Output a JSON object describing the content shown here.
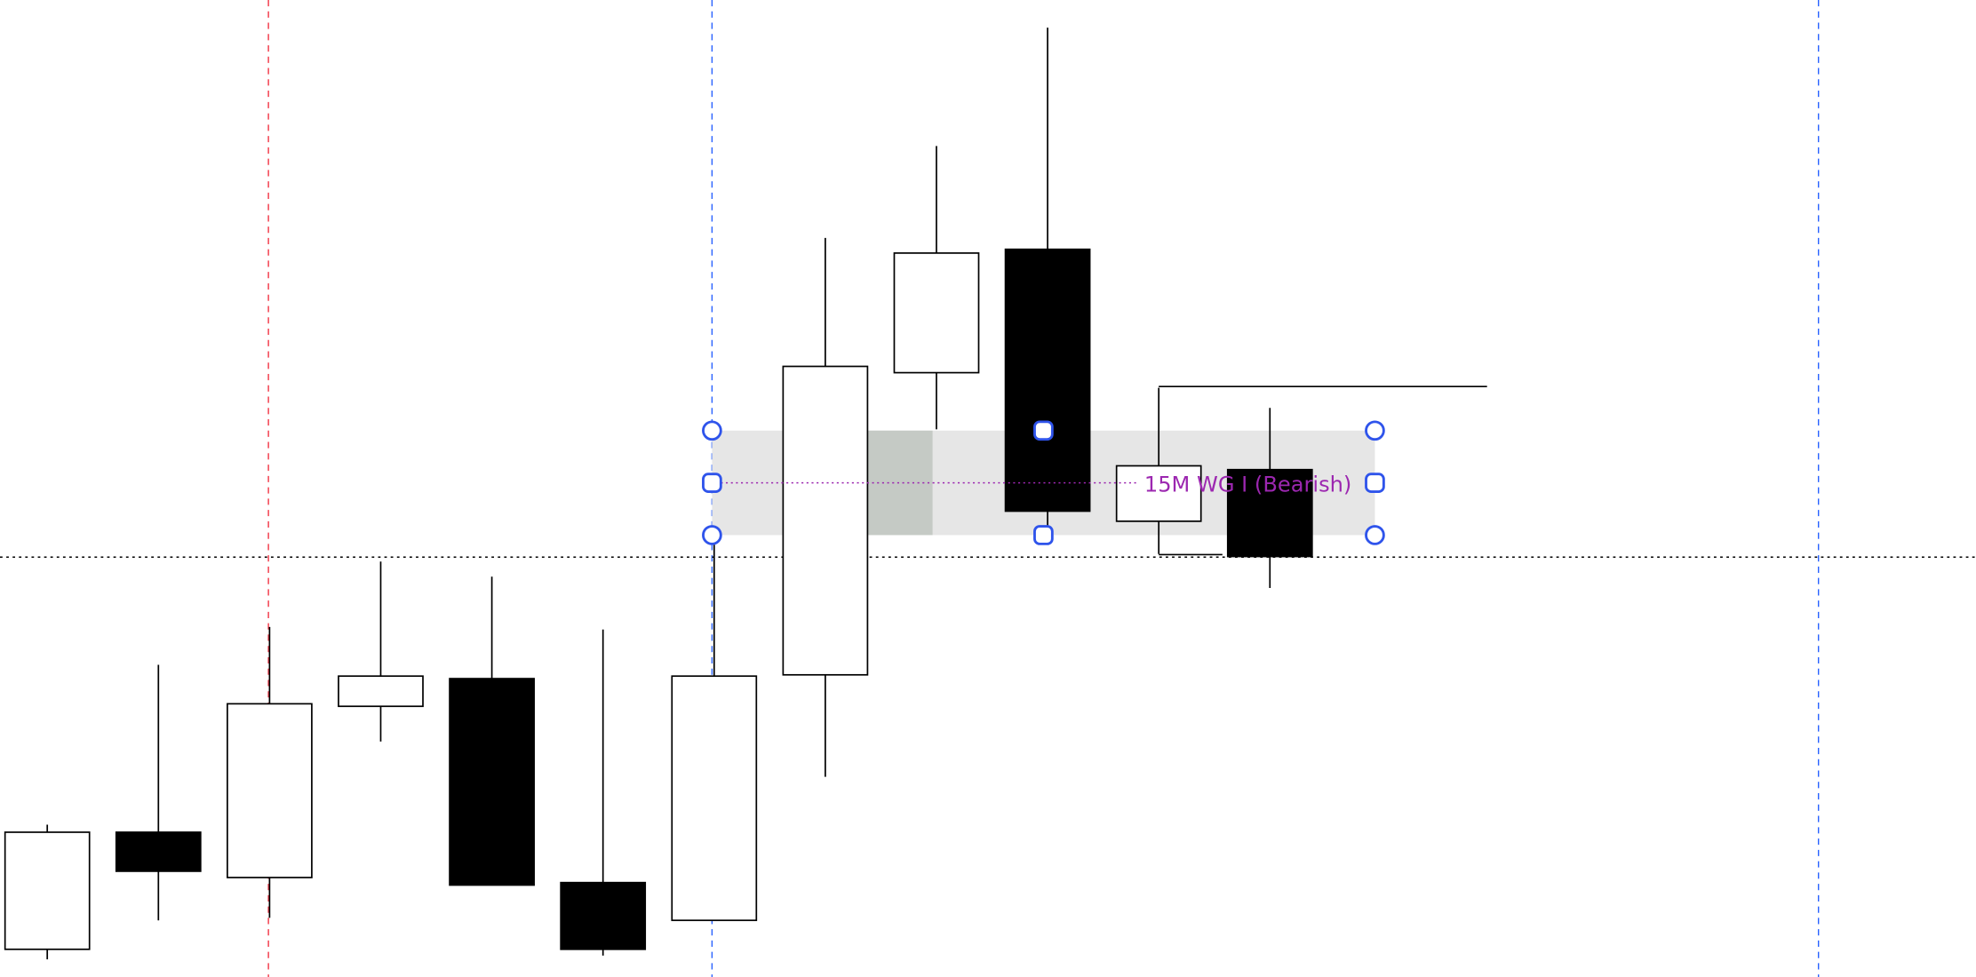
{
  "chart_data": {
    "type": "candlestick",
    "title": "",
    "grid": false,
    "candles": [
      {
        "open": 22,
        "high": 121,
        "low": 14,
        "close": 115
      },
      {
        "open": 115,
        "high": 248,
        "low": 45,
        "close": 84
      },
      {
        "open": 79,
        "high": 278,
        "low": 47,
        "close": 217
      },
      {
        "open": 215,
        "high": 330,
        "low": 187,
        "close": 239
      },
      {
        "open": 237,
        "high": 318,
        "low": 73,
        "close": 73
      },
      {
        "open": 75,
        "high": 276,
        "low": 17,
        "close": 22
      },
      {
        "open": 45,
        "high": 348,
        "low": 45,
        "close": 239
      },
      {
        "open": 240,
        "high": 587,
        "low": 159,
        "close": 485
      },
      {
        "open": 480,
        "high": 660,
        "low": 435,
        "close": 575
      },
      {
        "open": 578,
        "high": 754,
        "low": 356,
        "close": 370
      },
      {
        "open": 362,
        "high": 468,
        "low": 336,
        "close": 406
      },
      {
        "open": 403,
        "high": 452,
        "low": 309,
        "close": 334
      }
    ],
    "annotations": {
      "zone_label": "15M WG I (Bearish)",
      "zone_top": 434,
      "zone_bottom": 351,
      "horizontal_dotted_price": 334,
      "ray_price": 469
    },
    "colors": {
      "bullish_fill": "#ffffff",
      "bearish_fill": "#000000",
      "zone_fill": "#e6e6e6",
      "zone_highlight": "#c5cac5",
      "label": "#9c27b0",
      "handle": "#2f54eb",
      "vline_red": "#f23645",
      "vline_blue": "#2962ff"
    }
  }
}
